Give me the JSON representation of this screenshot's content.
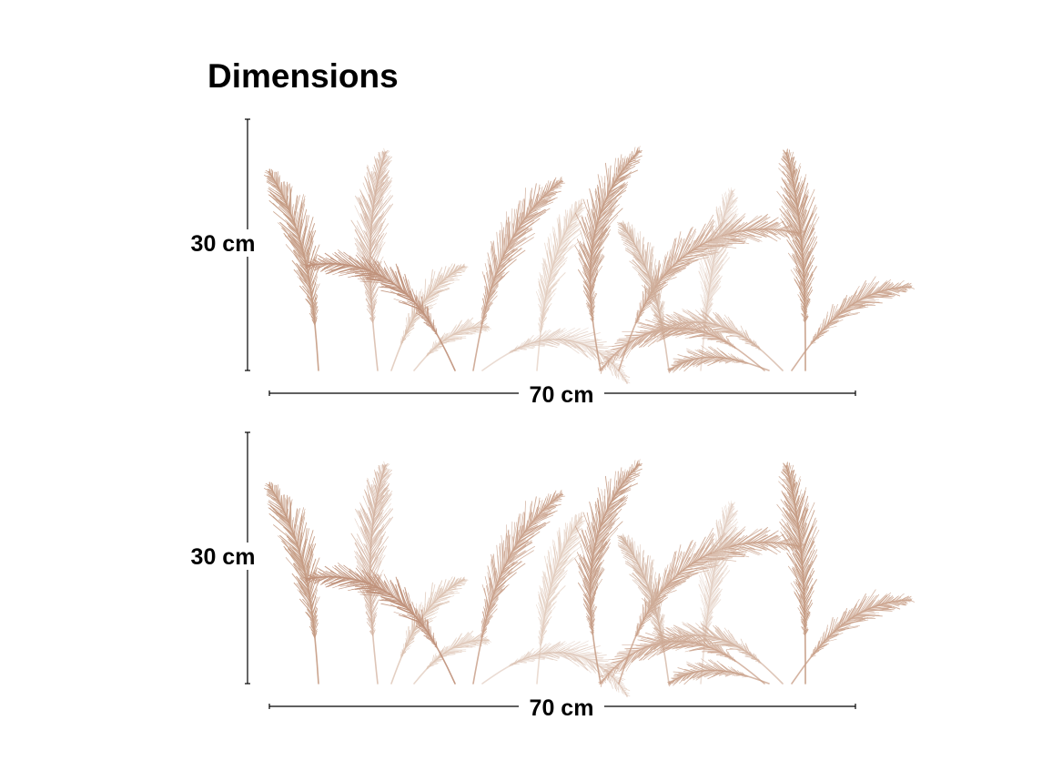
{
  "header": {
    "title": "Dimensions"
  },
  "panels": [
    {
      "height_label": "30 cm",
      "width_label": "70 cm"
    },
    {
      "height_label": "30 cm",
      "width_label": "70 cm"
    }
  ]
}
